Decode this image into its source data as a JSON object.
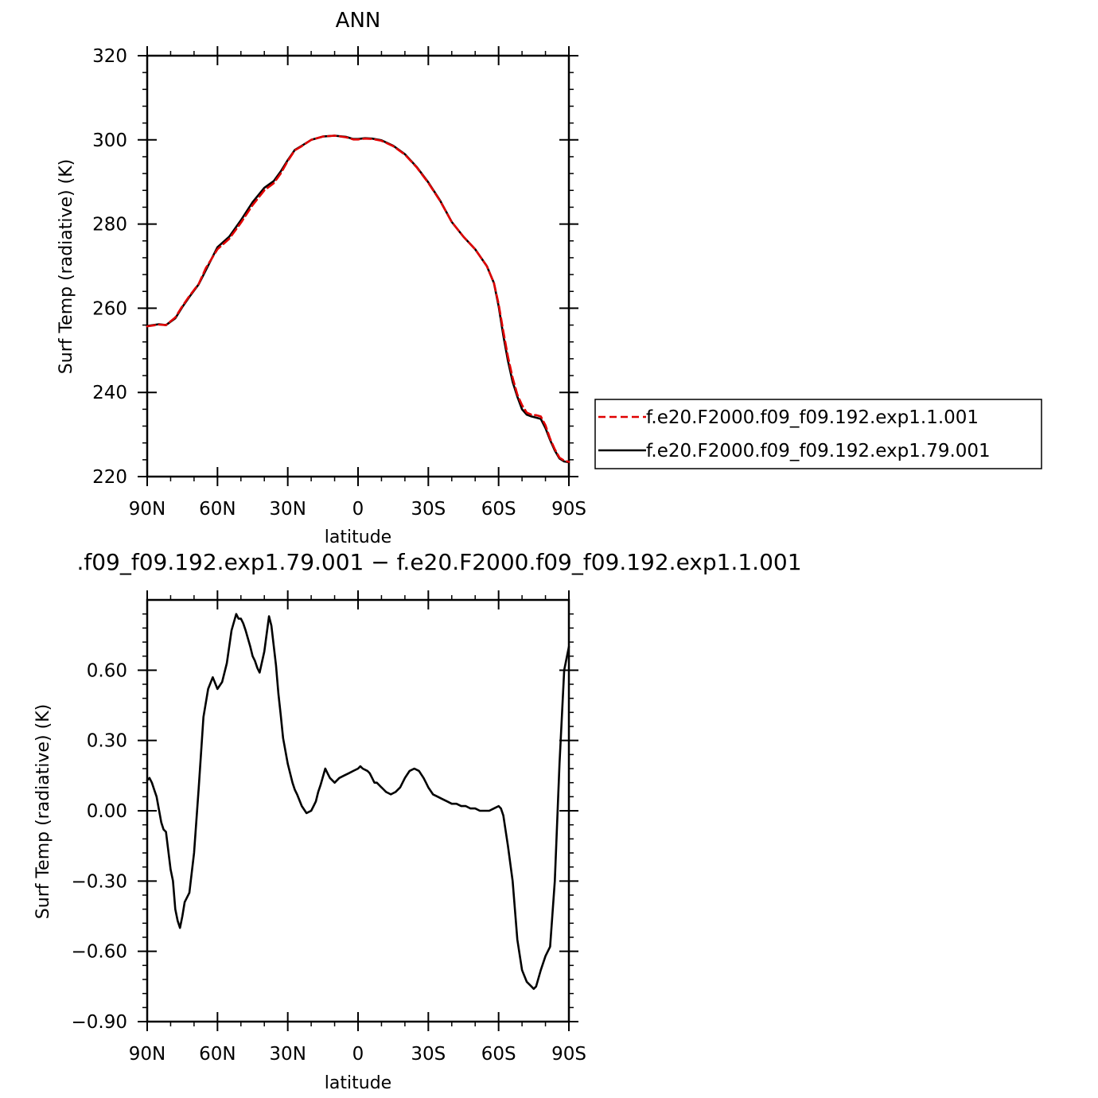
{
  "chart_data": [
    {
      "type": "line",
      "title": "ANN",
      "xlabel": "latitude",
      "ylabel": "Surf Temp (radiative) (K)",
      "xlim": [
        90,
        -90
      ],
      "ylim": [
        220,
        320
      ],
      "yticks": [
        220,
        240,
        260,
        280,
        300,
        320
      ],
      "xticks": [
        90,
        60,
        30,
        0,
        -30,
        -60,
        -90
      ],
      "xticklabels": [
        "90N",
        "60N",
        "30N",
        "0",
        "30S",
        "60S",
        "90S"
      ],
      "legend_position": "right",
      "series": [
        {
          "name": "f.e20.F2000.f09_f09.192.exp1.1.001",
          "color": "#e00000",
          "dash": "dashed",
          "x": [
            90,
            85,
            82,
            78,
            75,
            72,
            68,
            65,
            60,
            55,
            50,
            45,
            40,
            36,
            33,
            30,
            27,
            24,
            20,
            15,
            10,
            5,
            2,
            0,
            -3,
            -6,
            -10,
            -15,
            -20,
            -25,
            -30,
            -35,
            -40,
            -45,
            -50,
            -55,
            -58,
            -60,
            -62,
            -64,
            -66,
            -68,
            -70,
            -72,
            -74,
            -76,
            -78,
            -80,
            -82,
            -84,
            -86,
            -88,
            -90
          ],
          "y": [
            255.7,
            256.1,
            256.0,
            257.8,
            260.5,
            262.9,
            265.8,
            269.5,
            274.0,
            276.5,
            280.3,
            284.5,
            288.0,
            289.7,
            292.0,
            295.0,
            297.5,
            298.5,
            300.0,
            300.8,
            301.0,
            300.6,
            300.1,
            300.1,
            300.3,
            300.2,
            299.8,
            298.5,
            296.5,
            293.5,
            289.8,
            285.5,
            280.5,
            277.0,
            274.0,
            270.0,
            266.0,
            261.0,
            254.5,
            248.5,
            243.5,
            239.5,
            237.0,
            235.2,
            234.7,
            234.6,
            234.3,
            232.2,
            229.0,
            226.5,
            224.5,
            223.8,
            223.5
          ]
        },
        {
          "name": "f.e20.F2000.f09_f09.192.exp1.79.001",
          "color": "#000000",
          "dash": "solid",
          "x": [
            90,
            85,
            82,
            78,
            75,
            72,
            68,
            65,
            60,
            55,
            50,
            45,
            40,
            36,
            33,
            30,
            27,
            24,
            20,
            15,
            10,
            5,
            2,
            0,
            -3,
            -6,
            -10,
            -15,
            -20,
            -25,
            -30,
            -35,
            -40,
            -45,
            -50,
            -55,
            -58,
            -60,
            -62,
            -64,
            -66,
            -68,
            -70,
            -72,
            -74,
            -76,
            -78,
            -80,
            -82,
            -84,
            -86,
            -88,
            -90
          ],
          "y": [
            255.8,
            256.2,
            256.0,
            257.6,
            260.3,
            262.7,
            265.7,
            269.0,
            274.5,
            277.0,
            280.9,
            285.2,
            288.6,
            290.2,
            292.5,
            295.2,
            297.6,
            298.6,
            300.0,
            300.8,
            301.0,
            300.7,
            300.2,
            300.2,
            300.4,
            300.3,
            299.9,
            298.6,
            296.6,
            293.6,
            289.9,
            285.6,
            280.5,
            277.0,
            274.0,
            270.0,
            266.0,
            260.5,
            253.5,
            247.5,
            242.5,
            239.0,
            236.0,
            234.7,
            234.3,
            234.0,
            233.7,
            231.5,
            228.7,
            226.2,
            224.3,
            223.6,
            223.4
          ]
        }
      ]
    },
    {
      "type": "line",
      "title": ".f09_f09.192.exp1.79.001 − f.e20.F2000.f09_f09.192.exp1.1.001",
      "xlabel": "latitude",
      "ylabel": "Surf Temp (radiative) (K)",
      "xlim": [
        90,
        -90
      ],
      "ylim": [
        -0.9,
        0.9
      ],
      "yticks": [
        -0.9,
        -0.6,
        -0.3,
        0.0,
        0.3,
        0.6
      ],
      "yticklabels": [
        "−0.90",
        "−0.60",
        "−0.30",
        "0.00",
        "0.30",
        "0.60"
      ],
      "xticks": [
        90,
        60,
        30,
        0,
        -30,
        -60,
        -90
      ],
      "xticklabels": [
        "90N",
        "60N",
        "30N",
        "0",
        "30S",
        "60S",
        "90S"
      ],
      "series": [
        {
          "color": "#000000",
          "x": [
            90,
            89,
            88,
            87,
            86,
            84,
            83,
            82,
            80,
            79,
            78,
            77,
            76,
            75,
            74,
            72,
            70,
            68,
            66,
            64,
            62,
            60,
            58,
            56,
            54,
            52,
            51,
            50,
            49,
            48,
            46,
            45,
            44,
            43,
            42,
            40,
            38,
            37,
            35,
            34,
            33,
            32,
            30,
            28,
            27,
            26,
            24,
            22,
            20,
            19,
            18,
            17,
            16,
            14,
            13,
            12,
            10,
            8,
            6,
            4,
            2,
            0,
            -1,
            -2,
            -4,
            -5,
            -6,
            -7,
            -8,
            -10,
            -11,
            -12,
            -14,
            -16,
            -18,
            -20,
            -22,
            -24,
            -26,
            -28,
            -29,
            -30,
            -32,
            -34,
            -36,
            -38,
            -40,
            -42,
            -44,
            -46,
            -48,
            -50,
            -52,
            -54,
            -56,
            -58,
            -60,
            -61,
            -62,
            -64,
            -66,
            -68,
            -70,
            -72,
            -74,
            -75,
            -76,
            -78,
            -80,
            -82,
            -84,
            -86,
            -88,
            -90
          ],
          "y": [
            0.13,
            0.14,
            0.12,
            0.09,
            0.06,
            -0.05,
            -0.08,
            -0.09,
            -0.25,
            -0.3,
            -0.42,
            -0.47,
            -0.5,
            -0.45,
            -0.39,
            -0.35,
            -0.18,
            0.1,
            0.4,
            0.52,
            0.57,
            0.52,
            0.55,
            0.63,
            0.77,
            0.84,
            0.82,
            0.82,
            0.8,
            0.77,
            0.7,
            0.66,
            0.64,
            0.61,
            0.59,
            0.68,
            0.83,
            0.79,
            0.62,
            0.5,
            0.41,
            0.31,
            0.2,
            0.12,
            0.09,
            0.07,
            0.02,
            -0.01,
            0.0,
            0.02,
            0.04,
            0.08,
            0.11,
            0.18,
            0.16,
            0.14,
            0.12,
            0.14,
            0.15,
            0.16,
            0.17,
            0.18,
            0.19,
            0.18,
            0.17,
            0.16,
            0.14,
            0.12,
            0.12,
            0.1,
            0.09,
            0.08,
            0.07,
            0.08,
            0.1,
            0.14,
            0.17,
            0.18,
            0.17,
            0.14,
            0.12,
            0.1,
            0.07,
            0.06,
            0.05,
            0.04,
            0.03,
            0.03,
            0.02,
            0.02,
            0.01,
            0.01,
            0.0,
            0.0,
            0.0,
            0.01,
            0.02,
            0.01,
            -0.02,
            -0.15,
            -0.3,
            -0.55,
            -0.68,
            -0.73,
            -0.75,
            -0.76,
            -0.75,
            -0.68,
            -0.62,
            -0.58,
            -0.3,
            0.2,
            0.6,
            0.7
          ]
        }
      ]
    }
  ],
  "legend": {
    "entries": [
      "f.e20.F2000.f09_f09.192.exp1.1.001",
      "f.e20.F2000.f09_f09.192.exp1.79.001"
    ]
  }
}
